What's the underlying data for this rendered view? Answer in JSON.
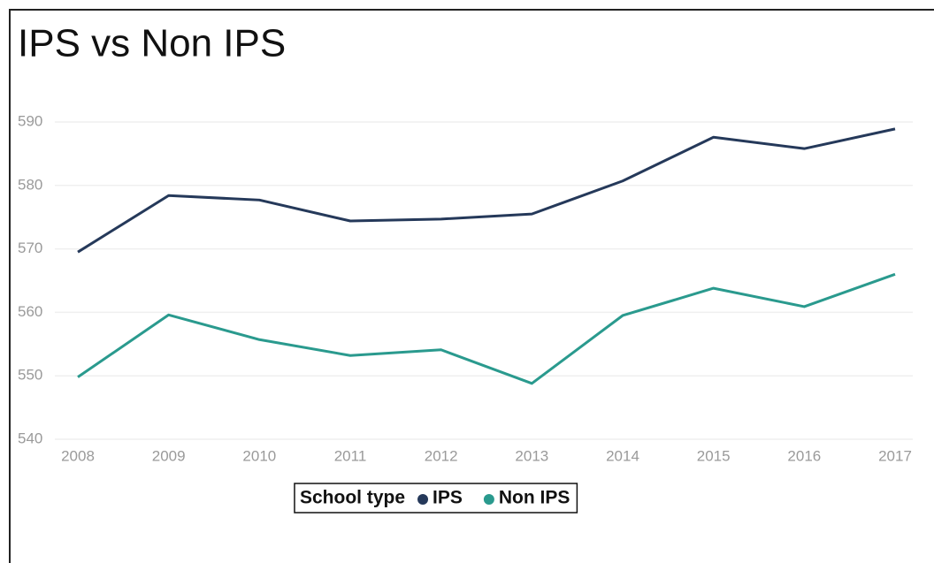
{
  "chart_data": {
    "type": "line",
    "title": "IPS vs Non IPS",
    "legend_title": "School type",
    "x": [
      2008,
      2009,
      2010,
      2011,
      2012,
      2013,
      2014,
      2015,
      2016,
      2017
    ],
    "xlim": [
      2008,
      2017
    ],
    "xticks": [
      2008,
      2009,
      2010,
      2011,
      2012,
      2013,
      2014,
      2015,
      2016,
      2017
    ],
    "ylim": [
      540,
      590
    ],
    "yticks": [
      540,
      550,
      560,
      570,
      580,
      590
    ],
    "grid": true,
    "legend": "bottom",
    "series": [
      {
        "name": "IPS",
        "color": "#25395a",
        "values": [
          569.5,
          578.4,
          577.7,
          574.4,
          574.7,
          575.5,
          580.7,
          587.6,
          585.8,
          588.9
        ]
      },
      {
        "name": "Non IPS",
        "color": "#2a9a8e",
        "values": [
          549.8,
          559.6,
          555.7,
          553.2,
          554.1,
          548.8,
          559.5,
          563.8,
          560.9,
          566.0
        ]
      }
    ]
  }
}
